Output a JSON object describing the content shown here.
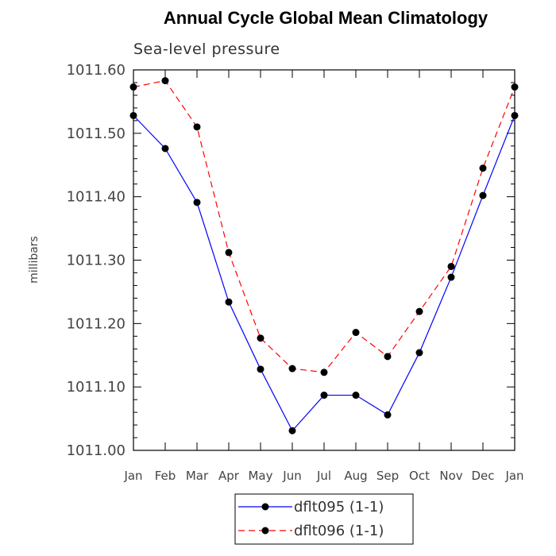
{
  "chart_data": {
    "type": "line",
    "title": "Annual Cycle Global Mean Climatology",
    "subtitle": "Sea-level pressure",
    "xlabel": "",
    "ylabel": "millibars",
    "categories": [
      "Jan",
      "Feb",
      "Mar",
      "Apr",
      "May",
      "Jun",
      "Jul",
      "Aug",
      "Sep",
      "Oct",
      "Nov",
      "Dec",
      "Jan"
    ],
    "ylim": [
      1011.0,
      1011.6
    ],
    "yticks": [
      "1011.00",
      "1011.10",
      "1011.20",
      "1011.30",
      "1011.40",
      "1011.50",
      "1011.60"
    ],
    "grid": false,
    "legend_position": "bottom",
    "series": [
      {
        "name": "dflt095 (1-1)",
        "color": "#0000ff",
        "line_style": "solid",
        "marker": "filled-circle",
        "values": [
          1011.528,
          1011.476,
          1011.391,
          1011.234,
          1011.128,
          1011.031,
          1011.087,
          1011.087,
          1011.056,
          1011.154,
          1011.273,
          1011.402,
          1011.528
        ]
      },
      {
        "name": "dflt096 (1-1)",
        "color": "#ff0000",
        "line_style": "dashed",
        "marker": "filled-circle",
        "values": [
          1011.573,
          1011.583,
          1011.51,
          1011.312,
          1011.177,
          1011.129,
          1011.123,
          1011.186,
          1011.148,
          1011.219,
          1011.29,
          1011.445,
          1011.573
        ]
      }
    ]
  }
}
